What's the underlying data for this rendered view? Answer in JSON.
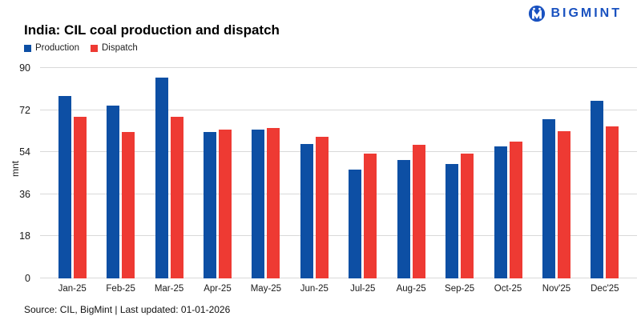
{
  "brand": {
    "name": "BIGMINT",
    "color": "#1a52c0"
  },
  "title": "India: CIL coal production and dispatch",
  "source_note": "Source: CIL, BigMint | Last updated: 01-01-2026",
  "chart_data": {
    "type": "bar",
    "title": "India: CIL coal production and dispatch",
    "categories": [
      "Jan-25",
      "Feb-25",
      "Mar-25",
      "Apr-25",
      "May-25",
      "Jun-25",
      "Jul-25",
      "Aug-25",
      "Sep-25",
      "Oct-25",
      "Nov'25",
      "Dec'25"
    ],
    "series": [
      {
        "name": "Production",
        "color": "#0d4fa4",
        "values": [
          78,
          74,
          86,
          62.5,
          63.5,
          57.5,
          46.5,
          50.5,
          49,
          56.5,
          68,
          76
        ]
      },
      {
        "name": "Dispatch",
        "color": "#ee3a33",
        "values": [
          69,
          62.5,
          69,
          63.5,
          64.5,
          60.5,
          53.5,
          57,
          53.5,
          58.5,
          63,
          65
        ]
      }
    ],
    "xlabel": "",
    "ylabel": "mnt",
    "ylim": [
      0,
      90
    ],
    "yticks": [
      0,
      18,
      36,
      54,
      72,
      90
    ],
    "grid": true,
    "legend_position": "top-left"
  }
}
